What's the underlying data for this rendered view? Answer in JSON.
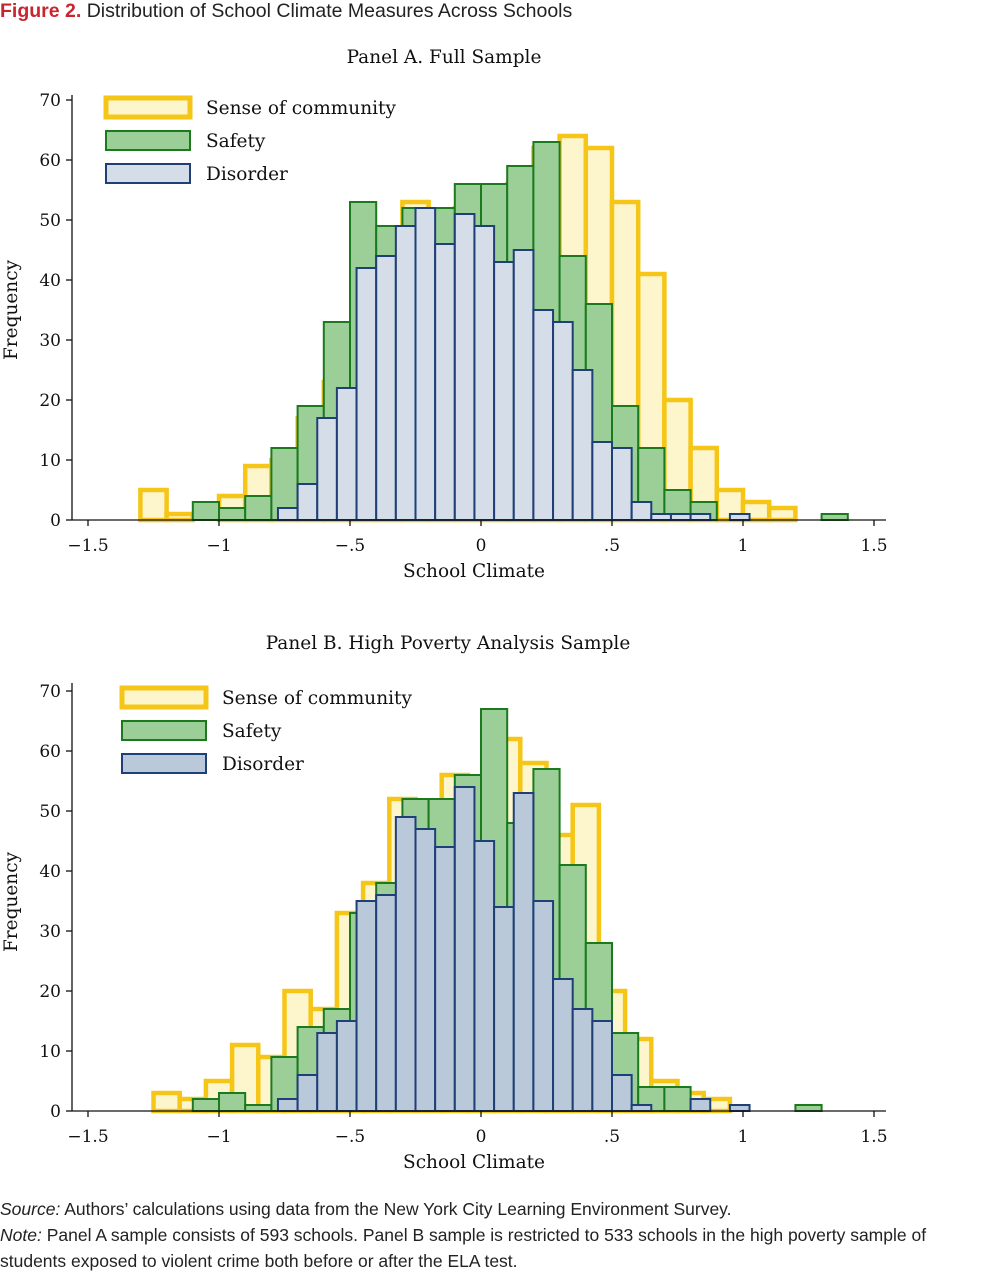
{
  "figure": {
    "label": "Figure 2.",
    "title": "Distribution of School Climate Measures Across Schools"
  },
  "colors": {
    "community_edge": "#f5c518",
    "community_fill": "#fdf6cc",
    "safety_edge": "#1b7a1e",
    "safety_fill": "#9ccf98",
    "disorder_edge": "#1f3f77",
    "disorder_fill_a": "#d4dde8",
    "disorder_fill_b": "#b9c9d9"
  },
  "chart_data": [
    {
      "type": "bar",
      "subtype": "overlaid-histogram",
      "title": "Panel A. Full Sample",
      "xlabel": "School Climate",
      "ylabel": "Frequency",
      "xlim": [
        -1.5,
        1.5
      ],
      "ylim": [
        0,
        70
      ],
      "xticks": [
        -1.5,
        -1,
        -0.5,
        0,
        0.5,
        1,
        1.5
      ],
      "xtick_labels": [
        "−1.5",
        "−1",
        "−.5",
        "0",
        ".5",
        "1",
        "1.5"
      ],
      "yticks": [
        0,
        10,
        20,
        30,
        40,
        50,
        60,
        70
      ],
      "ytick_labels": [
        "0",
        "10",
        "20",
        "30",
        "40",
        "50",
        "60",
        "70"
      ],
      "legend_position": "top-left",
      "series": [
        {
          "name": "Sense of community",
          "bin_width": 0.1,
          "start": -1.3,
          "values": [
            5,
            1,
            0,
            4,
            9,
            10,
            17,
            23,
            19,
            33,
            53,
            49,
            52,
            50,
            56,
            62,
            64,
            62,
            53,
            41,
            20,
            12,
            5,
            3,
            2
          ]
        },
        {
          "name": "Safety",
          "bin_width": 0.1,
          "start": -1.1,
          "values": [
            3,
            2,
            4,
            12,
            19,
            33,
            53,
            49,
            52,
            52,
            56,
            56,
            59,
            63,
            44,
            36,
            19,
            12,
            5,
            3,
            0,
            0,
            0,
            0,
            1
          ]
        },
        {
          "name": "Disorder",
          "bin_width": 0.075,
          "start": -0.775,
          "values": [
            2,
            6,
            17,
            22,
            42,
            44,
            49,
            52,
            46,
            51,
            49,
            43,
            45,
            35,
            33,
            25,
            13,
            12,
            3,
            1,
            1,
            1,
            0,
            1
          ]
        }
      ]
    },
    {
      "type": "bar",
      "subtype": "overlaid-histogram",
      "title": "Panel B. High Poverty Analysis Sample",
      "xlabel": "School Climate",
      "ylabel": "Frequency",
      "xlim": [
        -1.5,
        1.5
      ],
      "ylim": [
        0,
        70
      ],
      "xticks": [
        -1.5,
        -1,
        -0.5,
        0,
        0.5,
        1,
        1.5
      ],
      "xtick_labels": [
        "−1.5",
        "−1",
        "−.5",
        "0",
        ".5",
        "1",
        "1.5"
      ],
      "yticks": [
        0,
        10,
        20,
        30,
        40,
        50,
        60,
        70
      ],
      "ytick_labels": [
        "0",
        "10",
        "20",
        "30",
        "40",
        "50",
        "60",
        "70"
      ],
      "legend_position": "top-left",
      "series": [
        {
          "name": "Sense of community",
          "bin_width": 0.1,
          "start": -1.25,
          "values": [
            3,
            2,
            5,
            11,
            9,
            20,
            17,
            33,
            38,
            52,
            49,
            56,
            55,
            62,
            58,
            46,
            51,
            20,
            12,
            5,
            3,
            2
          ]
        },
        {
          "name": "Safety",
          "bin_width": 0.1,
          "start": -1.1,
          "values": [
            2,
            3,
            1,
            9,
            14,
            17,
            33,
            38,
            52,
            52,
            56,
            67,
            48,
            57,
            41,
            28,
            13,
            4,
            4,
            0,
            0,
            0,
            0,
            1
          ]
        },
        {
          "name": "Disorder",
          "bin_width": 0.075,
          "start": -0.775,
          "values": [
            2,
            6,
            13,
            15,
            35,
            36,
            49,
            47,
            44,
            54,
            45,
            34,
            53,
            35,
            22,
            17,
            15,
            6,
            1,
            0,
            0,
            2,
            0,
            1
          ]
        }
      ]
    }
  ],
  "notes": {
    "source_label": "Source:",
    "source_text": "Authors’ calculations using data from the New York City Learning Environment Survey.",
    "note_label": "Note:",
    "note_text": "Panel A sample consists of 593 schools. Panel B sample is restricted to 533 schools in the high poverty sample of students exposed to violent crime both before or after the ELA test."
  }
}
